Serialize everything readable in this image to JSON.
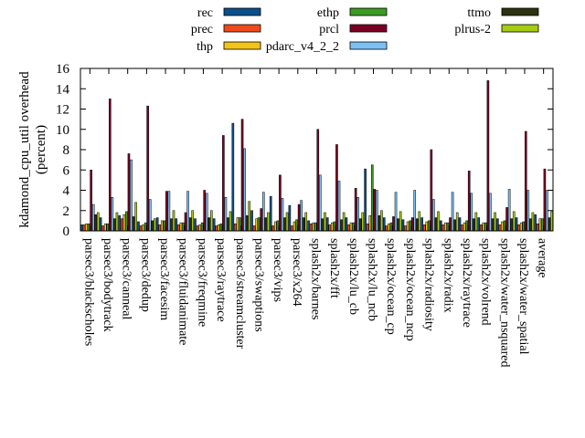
{
  "chart_data": {
    "type": "bar",
    "ylabel_lines": [
      "kdamond_cpu_util overhead",
      "(percent)"
    ],
    "ylim": [
      0,
      16
    ],
    "yticks": [
      0,
      2,
      4,
      6,
      8,
      10,
      12,
      14,
      16
    ],
    "grid": false,
    "legend_position": "top",
    "categories": [
      "parsec3/blackscholes",
      "parsec3/bodytrack",
      "parsec3/canneal",
      "parsec3/dedup",
      "parsec3/facesim",
      "parsec3/fluidanimate",
      "parsec3/freqmine",
      "parsec3/raytrace",
      "parsec3/streamcluster",
      "parsec3/swaptions",
      "parsec3/vips",
      "parsec3/x264",
      "splash2x/barnes",
      "splash2x/fft",
      "splash2x/lu_cb",
      "splash2x/lu_ncb",
      "splash2x/ocean_cp",
      "splash2x/ocean_ncp",
      "splash2x/radiosity",
      "splash2x/radix",
      "splash2x/raytrace",
      "splash2x/volrend",
      "splash2x/water_nsquared",
      "splash2x/water_spatial",
      "average"
    ],
    "series": [
      {
        "name": "rec",
        "color": "#0b4f8a",
        "values": [
          0.6,
          1.3,
          1.5,
          0.9,
          1.3,
          1.2,
          1.2,
          1.2,
          10.6,
          2.0,
          3.4,
          2.5,
          1.0,
          1.3,
          1.3,
          6.1,
          1.3,
          1.1,
          1.3,
          1.0,
          1.3,
          1.3,
          1.2,
          1.3,
          1.6
        ]
      },
      {
        "name": "prec",
        "color": "#f04a1a",
        "values": [
          0.6,
          0.5,
          1.2,
          0.5,
          0.6,
          0.6,
          0.5,
          0.5,
          0.7,
          0.5,
          0.5,
          0.5,
          0.7,
          0.6,
          0.6,
          0.7,
          0.5,
          0.5,
          0.6,
          0.6,
          0.6,
          0.6,
          0.6,
          0.6,
          0.7
        ]
      },
      {
        "name": "thp",
        "color": "#f2c41a",
        "values": [
          0.7,
          0.7,
          1.6,
          0.6,
          1.0,
          0.8,
          0.6,
          0.6,
          1.3,
          1.2,
          0.9,
          0.9,
          0.8,
          0.8,
          0.8,
          1.5,
          0.7,
          0.9,
          0.9,
          0.8,
          0.8,
          0.8,
          0.9,
          0.8,
          1.2
        ]
      },
      {
        "name": "ethp",
        "color": "#3c9a23",
        "values": [
          0.7,
          0.7,
          1.9,
          0.8,
          1.0,
          0.8,
          0.8,
          0.7,
          1.3,
          1.3,
          1.0,
          1.1,
          0.8,
          0.9,
          0.8,
          6.5,
          0.8,
          1.0,
          1.0,
          0.8,
          1.0,
          0.8,
          1.0,
          0.9,
          1.2
        ]
      },
      {
        "name": "prcl",
        "color": "#7c0023",
        "values": [
          6.0,
          13.0,
          7.6,
          12.3,
          3.9,
          1.8,
          4.0,
          9.4,
          11.0,
          2.2,
          5.5,
          2.6,
          10.0,
          8.5,
          4.2,
          4.1,
          1.4,
          1.3,
          8.0,
          1.3,
          5.9,
          14.8,
          2.3,
          9.8,
          6.1
        ]
      },
      {
        "name": "pdarc_v4_2_2",
        "color": "#7cc0f4",
        "values": [
          2.6,
          3.3,
          7.0,
          3.1,
          3.9,
          3.9,
          3.7,
          3.3,
          8.1,
          3.8,
          3.2,
          3.0,
          5.5,
          4.9,
          3.3,
          4.0,
          3.8,
          4.0,
          3.1,
          3.8,
          3.7,
          3.7,
          4.1,
          4.0,
          4.0
        ]
      },
      {
        "name": "ttmo",
        "color": "#2d3210",
        "values": [
          1.6,
          1.2,
          1.4,
          1.0,
          1.2,
          1.3,
          1.3,
          1.3,
          1.5,
          1.3,
          1.3,
          1.3,
          1.2,
          1.1,
          1.2,
          1.5,
          1.2,
          1.2,
          1.3,
          1.1,
          1.2,
          1.2,
          1.2,
          1.2,
          1.3
        ]
      },
      {
        "name": "plrus-2",
        "color": "#a8cc10",
        "values": [
          1.8,
          1.8,
          2.8,
          1.2,
          2.0,
          2.0,
          2.0,
          1.9,
          2.9,
          1.8,
          1.8,
          1.8,
          1.8,
          1.8,
          1.8,
          2.0,
          1.9,
          1.9,
          1.9,
          1.8,
          1.8,
          1.8,
          1.9,
          1.8,
          1.9
        ]
      }
    ]
  }
}
